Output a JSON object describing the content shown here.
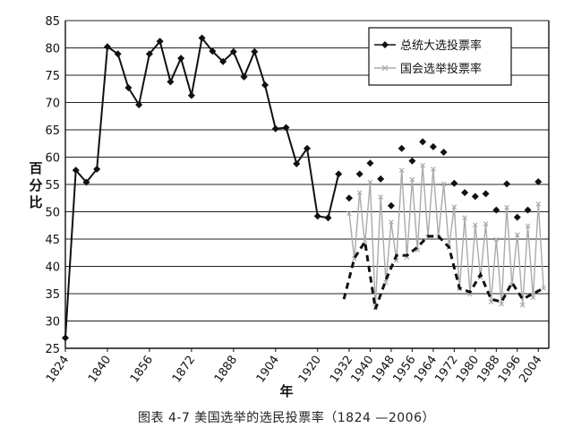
{
  "caption": "图表 4-7   美国选举的选民投票率（1824 —2006）",
  "chart_data": {
    "type": "line",
    "xlabel": "年",
    "ylabel": "百分比",
    "ylim": [
      25,
      85
    ],
    "yticks": [
      25,
      30,
      35,
      40,
      45,
      50,
      55,
      60,
      65,
      70,
      75,
      80,
      85
    ],
    "xlim": [
      1824,
      2008
    ],
    "xticks": [
      1824,
      1840,
      1856,
      1872,
      1888,
      1904,
      1920,
      1932,
      1940,
      1948,
      1956,
      1964,
      1972,
      1980,
      1988,
      1996,
      2004
    ],
    "grid": "horizontal",
    "legend_position": "top-right",
    "colors": {
      "presidential": "#111111",
      "congressional": "#aaaaaa"
    },
    "series": [
      {
        "name": "总统大选投票率",
        "style": "solid-diamond",
        "points": [
          [
            1824,
            26.9
          ],
          [
            1828,
            57.6
          ],
          [
            1832,
            55.4
          ],
          [
            1836,
            57.8
          ],
          [
            1840,
            80.2
          ],
          [
            1844,
            78.9
          ],
          [
            1848,
            72.7
          ],
          [
            1852,
            69.6
          ],
          [
            1856,
            78.9
          ],
          [
            1860,
            81.2
          ],
          [
            1864,
            73.8
          ],
          [
            1868,
            78.1
          ],
          [
            1872,
            71.3
          ],
          [
            1876,
            81.8
          ],
          [
            1880,
            79.4
          ],
          [
            1884,
            77.5
          ],
          [
            1888,
            79.3
          ],
          [
            1892,
            74.7
          ],
          [
            1896,
            79.3
          ],
          [
            1900,
            73.2
          ],
          [
            1904,
            65.2
          ],
          [
            1908,
            65.4
          ],
          [
            1912,
            58.8
          ],
          [
            1916,
            61.6
          ],
          [
            1920,
            49.2
          ],
          [
            1924,
            48.9
          ],
          [
            1928,
            56.9
          ]
        ]
      },
      {
        "name": "总统大选投票率",
        "style": "diamond-markers",
        "points": [
          [
            1932,
            52.5
          ],
          [
            1936,
            56.9
          ],
          [
            1940,
            58.9
          ],
          [
            1944,
            56.0
          ],
          [
            1948,
            51.1
          ],
          [
            1952,
            61.6
          ],
          [
            1956,
            59.3
          ],
          [
            1960,
            62.8
          ],
          [
            1964,
            61.9
          ],
          [
            1968,
            60.9
          ],
          [
            1972,
            55.2
          ],
          [
            1976,
            53.5
          ],
          [
            1980,
            52.8
          ],
          [
            1984,
            53.3
          ],
          [
            1988,
            50.3
          ],
          [
            1992,
            55.1
          ],
          [
            1996,
            49.0
          ],
          [
            2000,
            50.3
          ],
          [
            2004,
            55.5
          ]
        ]
      },
      {
        "name": "国会选举投票率",
        "style": "gray-sawtooth",
        "points": [
          [
            1932,
            49.7
          ],
          [
            1934,
            41.4
          ],
          [
            1936,
            53.5
          ],
          [
            1938,
            44.0
          ],
          [
            1940,
            55.4
          ],
          [
            1942,
            32.5
          ],
          [
            1944,
            52.7
          ],
          [
            1946,
            37.1
          ],
          [
            1948,
            48.1
          ],
          [
            1950,
            41.1
          ],
          [
            1952,
            57.6
          ],
          [
            1954,
            41.7
          ],
          [
            1956,
            55.9
          ],
          [
            1958,
            43.0
          ],
          [
            1960,
            58.5
          ],
          [
            1962,
            45.4
          ],
          [
            1964,
            57.8
          ],
          [
            1966,
            45.4
          ],
          [
            1968,
            55.1
          ],
          [
            1970,
            43.5
          ],
          [
            1972,
            50.9
          ],
          [
            1974,
            35.9
          ],
          [
            1976,
            48.9
          ],
          [
            1978,
            34.9
          ],
          [
            1980,
            47.6
          ],
          [
            1982,
            38.0
          ],
          [
            1984,
            47.8
          ],
          [
            1986,
            33.5
          ],
          [
            1988,
            44.9
          ],
          [
            1990,
            33.1
          ],
          [
            1992,
            50.8
          ],
          [
            1994,
            36.6
          ],
          [
            1996,
            45.8
          ],
          [
            1998,
            32.9
          ],
          [
            2000,
            47.4
          ],
          [
            2002,
            34.3
          ],
          [
            2004,
            51.4
          ],
          [
            2006,
            36.0
          ]
        ]
      },
      {
        "name": "国会选举投票率",
        "style": "dashed",
        "points": [
          [
            1930,
            34
          ],
          [
            1934,
            41.5
          ],
          [
            1938,
            44.5
          ],
          [
            1942,
            32.2
          ],
          [
            1946,
            37.5
          ],
          [
            1950,
            42
          ],
          [
            1954,
            42
          ],
          [
            1958,
            43.5
          ],
          [
            1962,
            45.5
          ],
          [
            1966,
            45.5
          ],
          [
            1970,
            43.5
          ],
          [
            1974,
            36
          ],
          [
            1978,
            35.3
          ],
          [
            1982,
            38.5
          ],
          [
            1986,
            34
          ],
          [
            1990,
            33.5
          ],
          [
            1994,
            37
          ],
          [
            1998,
            34
          ],
          [
            2002,
            35
          ],
          [
            2006,
            36
          ]
        ]
      }
    ],
    "legend": [
      {
        "label": "总统大选投票率",
        "symbol": "diamond"
      },
      {
        "label": "国会选举投票率",
        "symbol": "gray-x"
      }
    ]
  }
}
